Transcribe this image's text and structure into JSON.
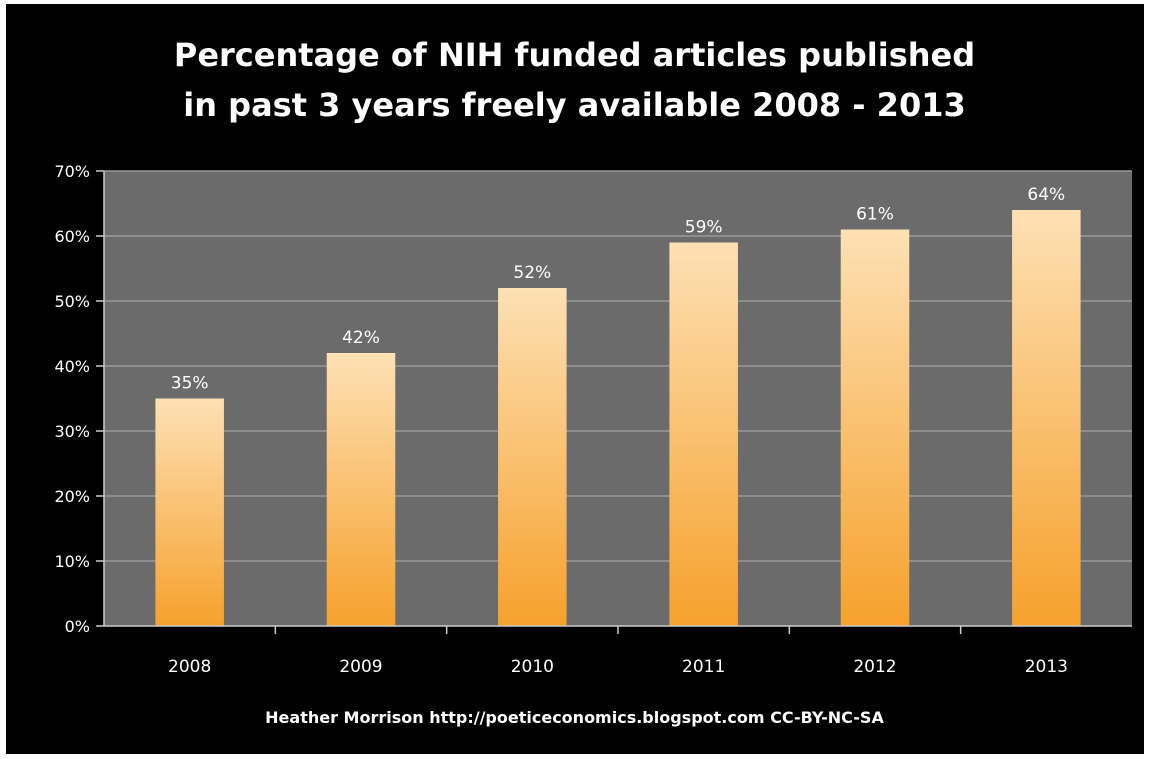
{
  "chart_data": {
    "type": "bar",
    "title_lines": [
      "Percentage of NIH funded articles published",
      "in past 3 years freely available 2008 - 2013"
    ],
    "categories": [
      "2008",
      "2009",
      "2010",
      "2011",
      "2012",
      "2013"
    ],
    "values": [
      35,
      42,
      52,
      59,
      61,
      64
    ],
    "data_labels": [
      "35%",
      "42%",
      "52%",
      "59%",
      "61%",
      "64%"
    ],
    "y_ticks": [
      0,
      10,
      20,
      30,
      40,
      50,
      60,
      70
    ],
    "y_tick_labels": [
      "0%",
      "10%",
      "20%",
      "30%",
      "40%",
      "50%",
      "60%",
      "70%"
    ],
    "ylim": [
      0,
      70
    ],
    "xlabel": "",
    "ylabel": "",
    "grid": true,
    "legend": "none",
    "colors": {
      "page_bg": "#000000",
      "plot_bg": "#6b6b6b",
      "grid": "#9a9a9a",
      "bar_top": "#fde0b4",
      "bar_bottom": "#f6a12c",
      "text": "#ffffff"
    }
  },
  "footer": {
    "credit": "Heather Morrison http://poeticeconomics.blogspot.com CC-BY-NC-SA"
  }
}
